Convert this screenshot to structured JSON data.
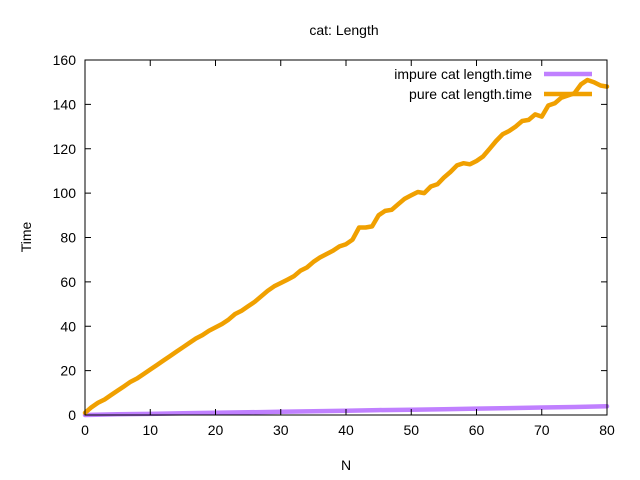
{
  "chart_data": {
    "type": "line",
    "title": "cat: Length",
    "xlabel": "N",
    "ylabel": "Time",
    "xlim": [
      0,
      80
    ],
    "ylim": [
      0,
      160
    ],
    "xticks": [
      0,
      10,
      20,
      30,
      40,
      50,
      60,
      70,
      80
    ],
    "yticks": [
      0,
      20,
      40,
      60,
      80,
      100,
      120,
      140,
      160
    ],
    "grid": false,
    "legend": "top-right",
    "series": [
      {
        "name": "impure cat length.time",
        "color": "#c080ff",
        "x": [
          0,
          5,
          10,
          15,
          20,
          25,
          30,
          35,
          40,
          45,
          50,
          55,
          60,
          65,
          70,
          75,
          80
        ],
        "y": [
          0.0,
          0.3,
          0.5,
          0.8,
          1.0,
          1.2,
          1.5,
          1.7,
          1.9,
          2.2,
          2.4,
          2.6,
          2.9,
          3.1,
          3.4,
          3.6,
          3.9
        ]
      },
      {
        "name": "pure cat length.time",
        "color": "#f0a000",
        "x": [
          0,
          1,
          2,
          3,
          4,
          5,
          6,
          7,
          8,
          9,
          10,
          11,
          12,
          13,
          14,
          15,
          16,
          17,
          18,
          19,
          20,
          21,
          22,
          23,
          24,
          25,
          26,
          27,
          28,
          29,
          30,
          31,
          32,
          33,
          34,
          35,
          36,
          37,
          38,
          39,
          40,
          41,
          42,
          43,
          44,
          45,
          46,
          47,
          48,
          49,
          50,
          51,
          52,
          53,
          54,
          55,
          56,
          57,
          58,
          59,
          60,
          61,
          62,
          63,
          64,
          65,
          66,
          67,
          68,
          69,
          70,
          71,
          72,
          73,
          74,
          75,
          76,
          77,
          78,
          79,
          80
        ],
        "y": [
          1,
          3.5,
          5.5,
          7,
          9,
          11,
          13,
          15,
          16.5,
          18.5,
          20.5,
          22.5,
          24.5,
          26.5,
          28.5,
          30.5,
          32.5,
          34.5,
          36,
          38,
          39.5,
          41,
          43,
          45.5,
          47,
          49,
          51,
          53.5,
          56,
          58,
          59.5,
          61,
          62.5,
          65,
          66.5,
          69,
          71,
          72.5,
          74,
          76,
          77,
          79,
          84.5,
          84.5,
          85,
          90,
          92,
          92.5,
          95,
          97.5,
          99,
          100.5,
          100,
          103,
          104,
          107,
          109.5,
          112.5,
          113.5,
          113,
          114.5,
          116.5,
          120,
          123.5,
          126.5,
          128,
          130,
          132.5,
          133,
          135.5,
          134.5,
          139.5,
          140.5,
          143,
          144,
          145,
          149,
          151,
          150,
          148.5,
          148
        ]
      }
    ]
  }
}
